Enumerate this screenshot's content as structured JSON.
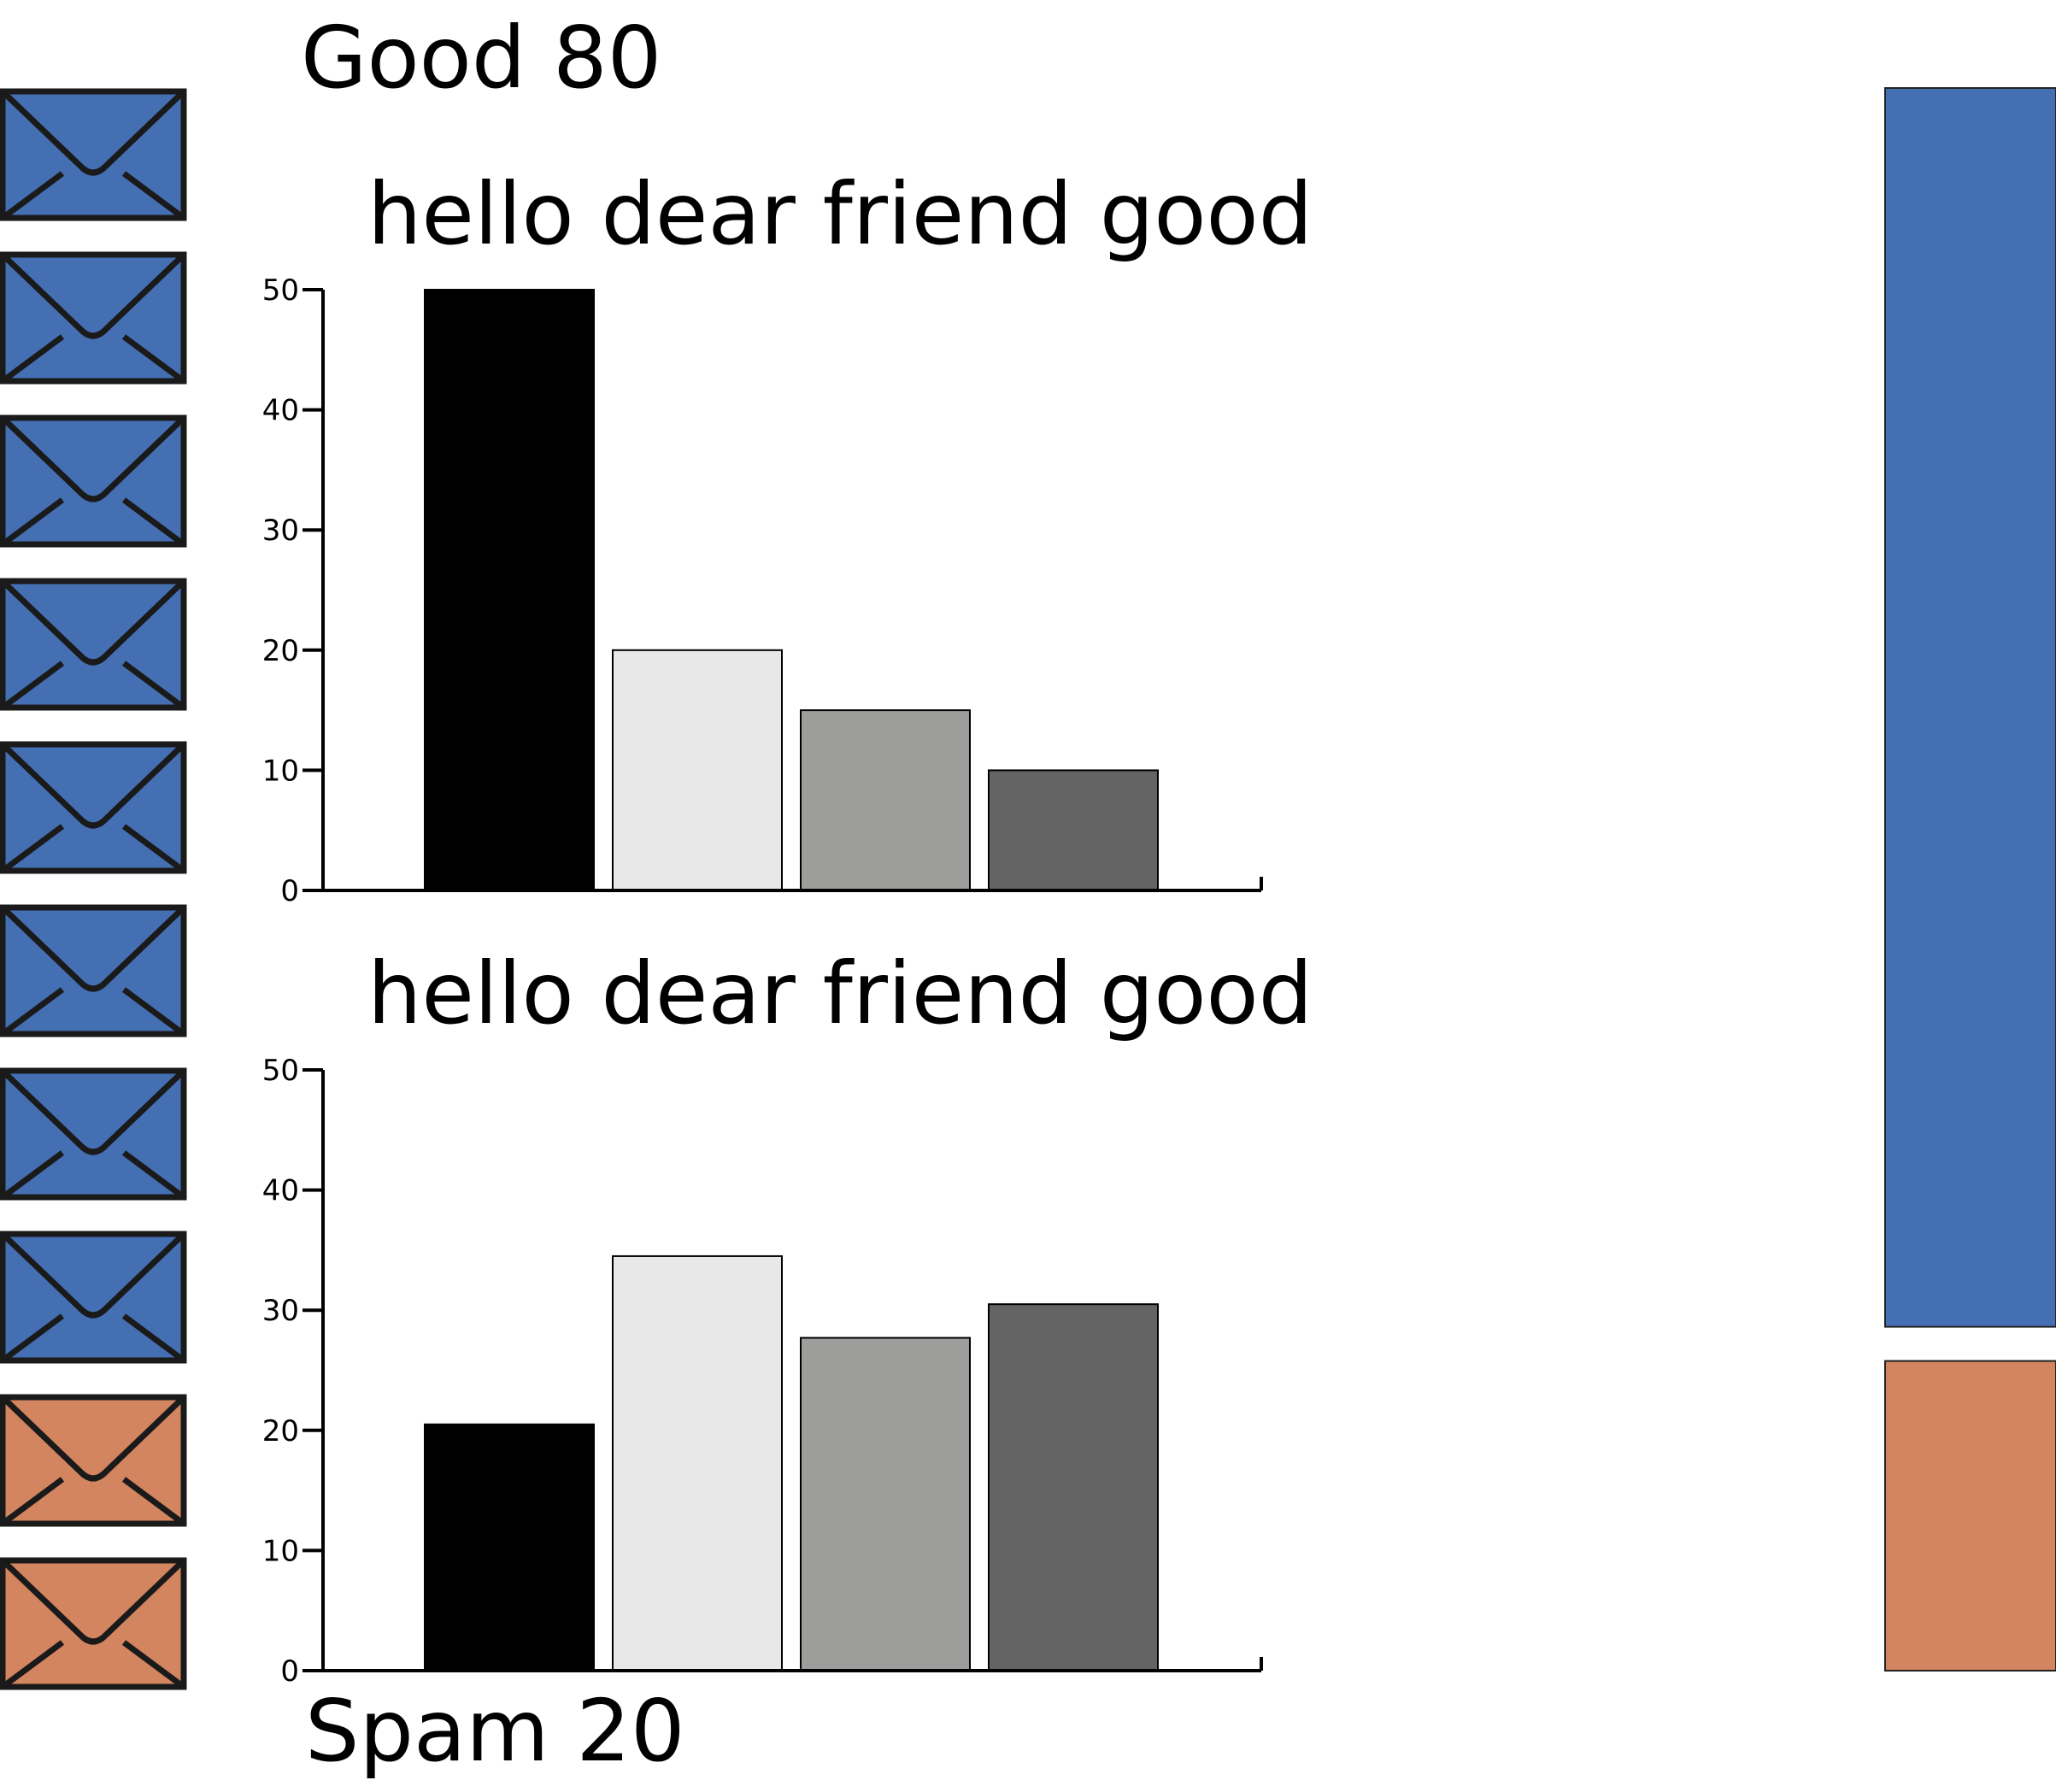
{
  "labels": {
    "good": "Good 80",
    "spam": "Spam 20"
  },
  "colors": {
    "good": "#4470b3",
    "spam": "#d38560",
    "envelope_stroke": "#1a1a1a"
  },
  "icons": {
    "envelope": "envelope-icon"
  },
  "envelopes": [
    {
      "kind": "good"
    },
    {
      "kind": "good"
    },
    {
      "kind": "good"
    },
    {
      "kind": "good"
    },
    {
      "kind": "good"
    },
    {
      "kind": "good"
    },
    {
      "kind": "good"
    },
    {
      "kind": "good"
    },
    {
      "kind": "spam"
    },
    {
      "kind": "spam"
    }
  ],
  "proportion": {
    "good": 80,
    "spam": 20
  },
  "chart_data": [
    {
      "type": "bar",
      "title": "hello dear friend good",
      "categories": [
        "hello",
        "dear",
        "friend",
        "good"
      ],
      "values": [
        50,
        20,
        15,
        10
      ],
      "ylim": [
        0,
        50
      ],
      "yticks": [
        0,
        10,
        20,
        30,
        40,
        50
      ],
      "bar_colors": [
        "#000000",
        "#e8e8e8",
        "#9d9d9b",
        "#646464"
      ]
    },
    {
      "type": "bar",
      "title": "hello dear friend good",
      "categories": [
        "hello",
        "dear",
        "friend",
        "good"
      ],
      "values": [
        20.5,
        34.5,
        27.7,
        30.5
      ],
      "ylim": [
        0,
        50
      ],
      "yticks": [
        0,
        10,
        20,
        30,
        40,
        50
      ],
      "bar_colors": [
        "#000000",
        "#e8e8e8",
        "#9d9d9b",
        "#646464"
      ]
    }
  ]
}
